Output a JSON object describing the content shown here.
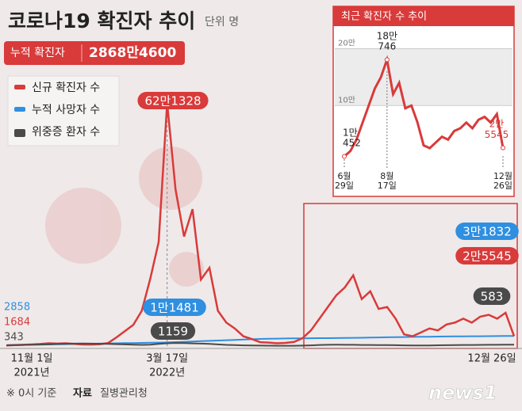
{
  "chart_data": [
    {
      "type": "line",
      "title": "코로나19 확진자 추이",
      "unit": "단위 명",
      "total_label": "누적 확진자",
      "total": {
        "value": 28684600,
        "label": "2868만4600"
      },
      "categories": [
        "11월 1일",
        null,
        null,
        null,
        null,
        null,
        null,
        null,
        null,
        null,
        null,
        null,
        null,
        null,
        null,
        null,
        null,
        null,
        null,
        "3월 17일",
        null,
        null,
        null,
        null,
        null,
        null,
        null,
        null,
        null,
        null,
        null,
        null,
        null,
        null,
        null,
        null,
        null,
        null,
        null,
        null,
        null,
        null,
        null,
        null,
        null,
        null,
        null,
        null,
        null,
        null,
        null,
        null,
        null,
        null,
        null,
        null,
        null,
        null,
        null,
        null,
        "12월 26일"
      ],
      "years": [
        "2021년",
        "2022년"
      ],
      "series": [
        {
          "name": "신규 확진자 수",
          "color": "#d93a3a",
          "values": [
            1684,
            2500,
            3200,
            4000,
            5300,
            7100,
            6200,
            7000,
            5400,
            4000,
            3800,
            4400,
            7500,
            22000,
            38000,
            54000,
            90000,
            171000,
            266000,
            621328,
            400000,
            280000,
            350000,
            170000,
            200000,
            90000,
            60000,
            45000,
            25000,
            18000,
            10000,
            9000,
            7000,
            8000,
            10452,
            20000,
            40000,
            70000,
            100000,
            130000,
            150000,
            180746,
            120000,
            140000,
            95000,
            100000,
            70000,
            30000,
            25000,
            35000,
            45000,
            40000,
            55000,
            60000,
            70000,
            60000,
            75000,
            80000,
            70000,
            85000,
            25545
          ],
          "value_labels": {
            "19": "62만1328",
            "60": "2만5545"
          }
        },
        {
          "name": "누적 사망자 수",
          "color": "#2f8fe0",
          "values": [
            2858,
            3300,
            3750,
            4200,
            4650,
            5100,
            5550,
            6000,
            6450,
            6900,
            7350,
            7800,
            8250,
            8700,
            9150,
            9600,
            10100,
            10600,
            11000,
            11481,
            12500,
            13500,
            14500,
            15500,
            16500,
            17500,
            18500,
            19500,
            20500,
            21500,
            22500,
            23000,
            23500,
            24000,
            24300,
            24500,
            24700,
            24900,
            25100,
            25300,
            25600,
            25900,
            26300,
            26800,
            27300,
            27800,
            28200,
            28600,
            29000,
            29300,
            29600,
            29900,
            30200,
            30500,
            30700,
            30900,
            31100,
            31300,
            31500,
            31700,
            31832
          ],
          "value_labels": {
            "19": "1만1481",
            "60": "3만1832"
          }
        },
        {
          "name": "위중증 환자 수",
          "color": "#4a4a4a",
          "values": [
            343,
            400,
            480,
            560,
            650,
            750,
            850,
            950,
            1050,
            1080,
            1050,
            1000,
            900,
            800,
            700,
            600,
            500,
            600,
            900,
            1159,
            1300,
            1250,
            1150,
            1050,
            900,
            700,
            500,
            400,
            300,
            250,
            200,
            180,
            150,
            130,
            140,
            200,
            300,
            450,
            550,
            580,
            550,
            520,
            480,
            450,
            420,
            400,
            350,
            300,
            250,
            260,
            280,
            320,
            380,
            420,
            450,
            480,
            500,
            520,
            550,
            570,
            583
          ]
        }
      ],
      "source_note": "※ 0시 기준",
      "source_label": "자료",
      "source": "질병관리청",
      "logo": "news1"
    },
    {
      "type": "line",
      "title": "최근 확진자 수 추이",
      "categories": [
        "6월 29일",
        null,
        null,
        null,
        null,
        null,
        null,
        "8월 17일",
        null,
        null,
        null,
        null,
        null,
        null,
        null,
        null,
        null,
        null,
        null,
        null,
        null,
        null,
        null,
        null,
        null,
        null,
        "12월 26일"
      ],
      "ylim": [
        0,
        230000
      ],
      "yticks": [
        {
          "value": 100000,
          "label": "10만"
        },
        {
          "value": 200000,
          "label": "20만"
        }
      ],
      "series": [
        {
          "name": "신규 확진자 수",
          "color": "#d93a3a",
          "values": [
            10452,
            20000,
            40000,
            70000,
            100000,
            130000,
            150000,
            180746,
            120000,
            140000,
            95000,
            100000,
            70000,
            30000,
            25000,
            35000,
            45000,
            40000,
            55000,
            60000,
            70000,
            60000,
            75000,
            80000,
            70000,
            85000,
            25545
          ],
          "value_labels": {
            "0": "1만\n452",
            "7": "18만\n746",
            "26": "2만\n5545"
          }
        }
      ]
    }
  ]
}
